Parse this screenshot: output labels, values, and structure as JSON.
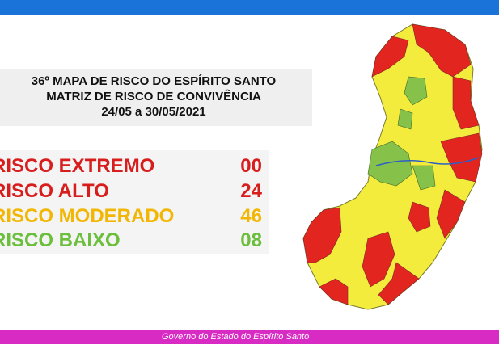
{
  "title": {
    "lines": [
      "36º MAPA DE RISCO DO ESPÍRITO SANTO",
      "MATRIZ DE RISCO DE CONVIVÊNCIA",
      "24/05 a 30/05/2021"
    ]
  },
  "legend": [
    {
      "label": "RISCO EXTREMO",
      "count": "00"
    },
    {
      "label": "RISCO ALTO",
      "count": "24"
    },
    {
      "label": "RISCO MODERADO",
      "count": "46"
    },
    {
      "label": "RISCO BAIXO",
      "count": "08"
    }
  ],
  "footer": "Governo do Estado do Espírito Santo"
}
